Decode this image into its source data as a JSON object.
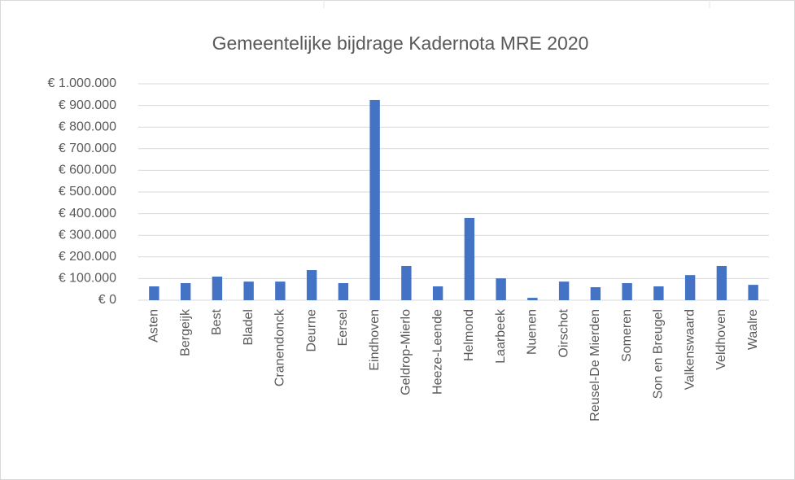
{
  "chart_data": {
    "type": "bar",
    "title": "Gemeentelijke bijdrage Kadernota MRE 2020",
    "categories": [
      "Asten",
      "Bergeijk",
      "Best",
      "Bladel",
      "Cranendonck",
      "Deurne",
      "Eersel",
      "Eindhoven",
      "Geldrop-Mierlo",
      "Heeze-Leende",
      "Helmond",
      "Laarbeek",
      "Nuenen",
      "Oirschot",
      "Reusel-De Mierden",
      "Someren",
      "Son en Breugel",
      "Valkenswaard",
      "Veldhoven",
      "Waalre"
    ],
    "values": [
      64000,
      79000,
      109000,
      86000,
      86000,
      139000,
      79000,
      925000,
      158000,
      64000,
      380000,
      101000,
      11000,
      86000,
      60000,
      79000,
      64000,
      116000,
      158000,
      71000
    ],
    "color": "#4472c4",
    "ylim": [
      0,
      1000000
    ],
    "yticks": [
      {
        "value": 0,
        "label": "€ 0"
      },
      {
        "value": 100000,
        "label": "€ 100.000"
      },
      {
        "value": 200000,
        "label": "€ 200.000"
      },
      {
        "value": 300000,
        "label": "€ 300.000"
      },
      {
        "value": 400000,
        "label": "€ 400.000"
      },
      {
        "value": 500000,
        "label": "€ 500.000"
      },
      {
        "value": 600000,
        "label": "€ 600.000"
      },
      {
        "value": 700000,
        "label": "€ 700.000"
      },
      {
        "value": 800000,
        "label": "€ 800.000"
      },
      {
        "value": 900000,
        "label": "€ 900.000"
      },
      {
        "value": 1000000,
        "label": "€ 1.000.000"
      }
    ],
    "grid": true
  }
}
